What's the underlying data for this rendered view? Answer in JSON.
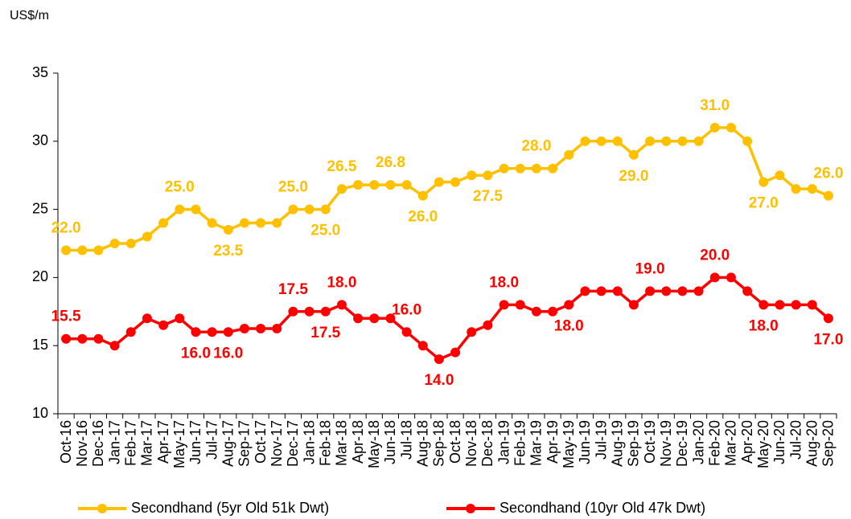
{
  "chart_data": {
    "type": "line",
    "ylabel": "US$/m",
    "categories": [
      "Oct-16",
      "Nov-16",
      "Dec-16",
      "Jan-17",
      "Feb-17",
      "Mar-17",
      "Apr-17",
      "May-17",
      "Jun-17",
      "Jul-17",
      "Aug-17",
      "Sep-17",
      "Oct-17",
      "Nov-17",
      "Dec-17",
      "Jan-18",
      "Feb-18",
      "Mar-18",
      "Apr-18",
      "May-18",
      "Jun-18",
      "Jul-18",
      "Aug-18",
      "Sep-18",
      "Oct-18",
      "Nov-18",
      "Dec-18",
      "Jan-19",
      "Feb-19",
      "Mar-19",
      "Apr-19",
      "May-19",
      "Jun-19",
      "Jul-19",
      "Aug-19",
      "Sep-19",
      "Oct-19",
      "Nov-19",
      "Dec-19",
      "Jan-20",
      "Feb-20",
      "Mar-20",
      "Apr-20",
      "May-20",
      "Jun-20",
      "Jul-20",
      "Aug-20",
      "Sep-20"
    ],
    "series": [
      {
        "name": "Secondhand (5yr Old 51k Dwt)",
        "color": "#ffc000",
        "values": [
          22,
          22,
          22,
          22.5,
          22.5,
          23,
          24,
          25,
          25,
          24,
          23.5,
          24,
          24,
          24,
          25,
          25,
          25,
          26.5,
          26.8,
          26.8,
          26.8,
          26.8,
          26,
          27,
          27,
          27.5,
          27.5,
          28,
          28,
          28,
          28,
          29,
          30,
          30,
          30,
          29,
          30,
          30,
          30,
          30,
          31,
          31,
          30,
          27,
          27.5,
          26.5,
          26.5,
          26
        ],
        "value_labels": [
          "22.0",
          null,
          null,
          null,
          null,
          null,
          null,
          "25.0",
          null,
          null,
          "23.5",
          null,
          null,
          null,
          "25.0",
          null,
          "25.0",
          "26.5",
          null,
          null,
          "26.8",
          null,
          "26.0",
          null,
          null,
          null,
          "27.5",
          null,
          null,
          "28.0",
          null,
          null,
          null,
          null,
          null,
          "29.0",
          null,
          null,
          null,
          null,
          "31.0",
          null,
          null,
          "27.0",
          null,
          null,
          null,
          "26.0"
        ]
      },
      {
        "name": "Secondhand (10yr Old 47k Dwt)",
        "color": "#ff0000",
        "values": [
          15.5,
          15.5,
          15.5,
          15,
          16,
          17,
          16.5,
          17,
          16,
          16,
          16,
          16.25,
          16.25,
          16.25,
          17.5,
          17.5,
          17.5,
          18,
          17,
          17,
          17,
          16,
          15,
          14,
          14.5,
          16,
          16.5,
          18,
          18,
          17.5,
          17.5,
          18,
          19,
          19,
          19,
          18,
          19,
          19,
          19,
          19,
          20,
          20,
          19,
          18,
          18,
          18,
          18,
          17
        ],
        "value_labels": [
          "15.5",
          null,
          null,
          null,
          null,
          null,
          null,
          null,
          "16.0",
          null,
          "16.0",
          null,
          null,
          null,
          "17.5",
          null,
          "17.5",
          "18.0",
          null,
          null,
          null,
          "16.0",
          null,
          "14.0",
          null,
          null,
          null,
          "18.0",
          null,
          null,
          null,
          "18.0",
          null,
          null,
          null,
          null,
          "19.0",
          null,
          null,
          null,
          "20.0",
          null,
          null,
          "18.0",
          null,
          null,
          null,
          "17.0"
        ]
      }
    ],
    "ylim": [
      10,
      35
    ],
    "yticks": [
      10,
      15,
      20,
      25,
      30,
      35
    ],
    "grid": false,
    "legend": "bottom"
  }
}
